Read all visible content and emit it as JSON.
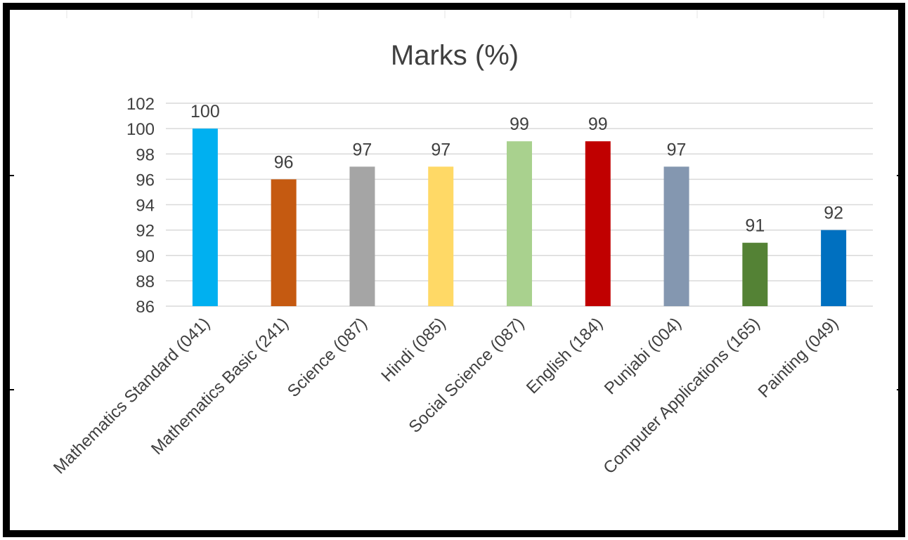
{
  "chart_data": {
    "type": "bar",
    "title": "Marks (%)",
    "categories": [
      "Mathematics Standard (041)",
      "Mathematics Basic (241)",
      "Science (087)",
      "Hindi (085)",
      "Social Science (087)",
      "English (184)",
      "Punjabi (004)",
      "Computer Applications (165)",
      "Painting (049)"
    ],
    "values": [
      100,
      96,
      97,
      97,
      99,
      99,
      97,
      91,
      92
    ],
    "data_labels": [
      "100",
      "96",
      "97",
      "97",
      "99",
      "99",
      "97",
      "91",
      "92"
    ],
    "colors": [
      "#00b0f0",
      "#c55a11",
      "#a5a5a5",
      "#ffd966",
      "#a9d18e",
      "#c00000",
      "#8497b0",
      "#548235",
      "#0070c0"
    ],
    "ylim": [
      86,
      102
    ],
    "yticks": [
      102,
      100,
      98,
      96,
      94,
      92,
      90,
      88,
      86
    ],
    "ytick_labels": [
      "102",
      "100",
      "98",
      "96",
      "94",
      "92",
      "90",
      "88",
      "86"
    ],
    "xlabel": "",
    "ylabel": "",
    "grid": true,
    "legend": "none"
  }
}
